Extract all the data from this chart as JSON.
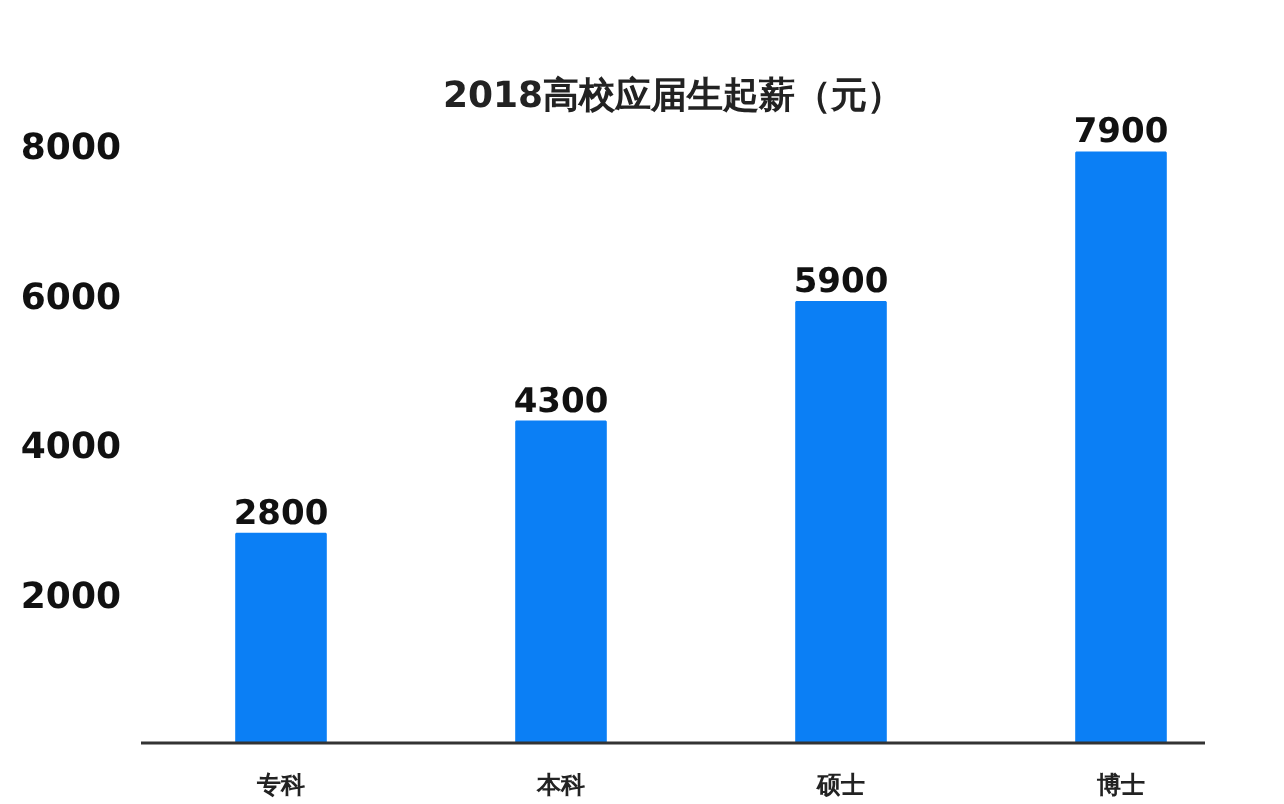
{
  "chart_data": {
    "type": "bar",
    "title": "2018高校应届生起薪（元）",
    "categories": [
      "专科",
      "本科",
      "硕士",
      "博士"
    ],
    "values": [
      2800,
      4300,
      5900,
      7900
    ],
    "color": "#0b7ff5",
    "ylim": [
      0,
      8000
    ],
    "yticks": [
      2000,
      4000,
      6000,
      8000
    ],
    "data_labels": true
  }
}
